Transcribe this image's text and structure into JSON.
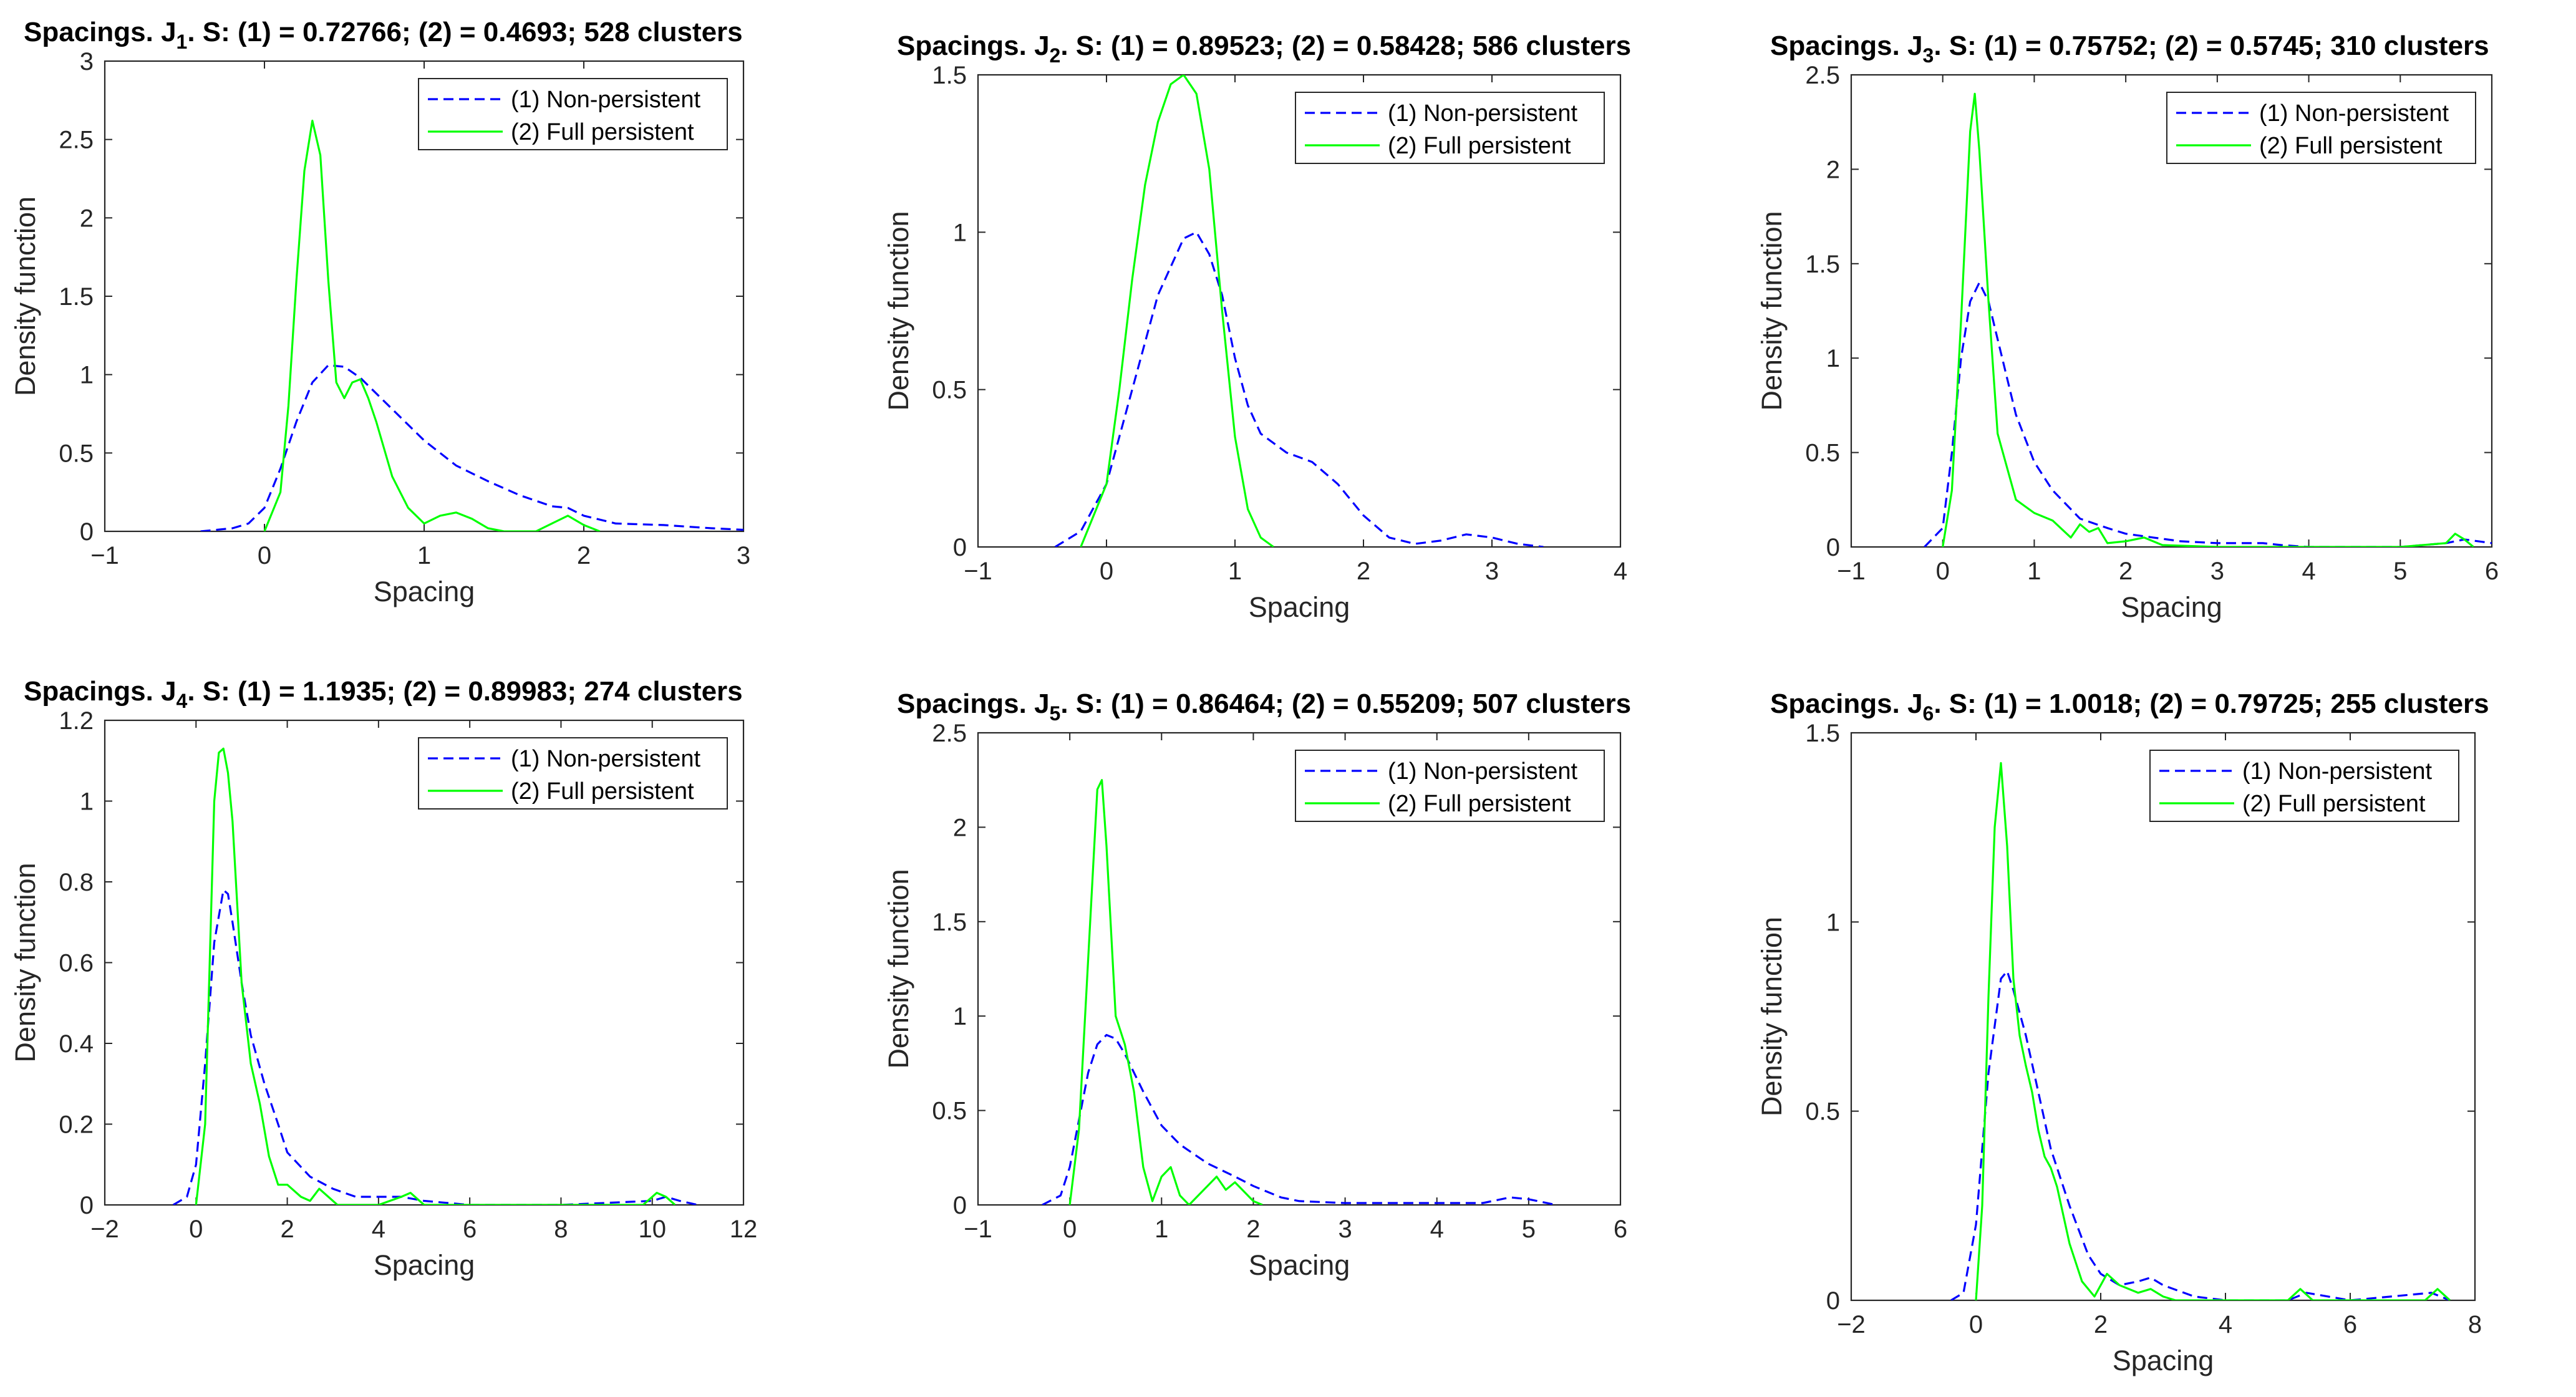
{
  "legend": {
    "non_persistent": "(1) Non-persistent",
    "full_persistent": "(2) Full persistent"
  },
  "colors": {
    "non_persistent": "#0000ff",
    "full_persistent": "#00ff00",
    "axis": "#262626"
  },
  "chart_data": [
    {
      "type": "line",
      "title": {
        "prefix": "Spacings. J",
        "subscript": "1",
        "suffix": ". S: (1) = 0.72766; (2) = 0.4693; 528 clusters"
      },
      "xlabel": "Spacing",
      "ylabel": "Density function",
      "xlim": [
        -1,
        3
      ],
      "ylim": [
        0,
        3
      ],
      "xticks": [
        -1,
        0,
        1,
        2,
        3
      ],
      "yticks": [
        0,
        0.5,
        1,
        1.5,
        2,
        2.5,
        3
      ],
      "legend_position": "top-right",
      "series": [
        {
          "name": "(1) Non-persistent",
          "style": "dashed",
          "x": [
            -0.4,
            -0.2,
            -0.1,
            0,
            0.1,
            0.2,
            0.3,
            0.4,
            0.5,
            0.6,
            0.8,
            1.0,
            1.2,
            1.4,
            1.6,
            1.8,
            1.9,
            2.0,
            2.2,
            2.5,
            2.8,
            3.0
          ],
          "y": [
            0,
            0.02,
            0.05,
            0.15,
            0.4,
            0.7,
            0.95,
            1.06,
            1.05,
            0.98,
            0.78,
            0.58,
            0.42,
            0.32,
            0.23,
            0.16,
            0.15,
            0.1,
            0.05,
            0.04,
            0.02,
            0.01
          ]
        },
        {
          "name": "(2) Full persistent",
          "style": "solid",
          "x": [
            0,
            0.1,
            0.15,
            0.2,
            0.25,
            0.3,
            0.35,
            0.4,
            0.45,
            0.5,
            0.55,
            0.6,
            0.65,
            0.7,
            0.8,
            0.9,
            1.0,
            1.1,
            1.2,
            1.3,
            1.4,
            1.5,
            1.7,
            1.8,
            1.9,
            2.0,
            2.1
          ],
          "y": [
            0,
            0.25,
            0.8,
            1.6,
            2.3,
            2.62,
            2.4,
            1.6,
            0.95,
            0.85,
            0.95,
            0.97,
            0.85,
            0.7,
            0.35,
            0.15,
            0.05,
            0.1,
            0.12,
            0.08,
            0.02,
            0,
            0,
            0.05,
            0.1,
            0.04,
            0
          ]
        }
      ]
    },
    {
      "type": "line",
      "title": {
        "prefix": "Spacings. J",
        "subscript": "2",
        "suffix": ". S: (1) = 0.89523; (2) = 0.58428; 586 clusters"
      },
      "xlabel": "Spacing",
      "ylabel": "Density function",
      "xlim": [
        -1,
        4
      ],
      "ylim": [
        0,
        1.5
      ],
      "xticks": [
        -1,
        0,
        1,
        2,
        3,
        4
      ],
      "yticks": [
        0,
        0.5,
        1,
        1.5
      ],
      "legend_position": "top-right",
      "series": [
        {
          "name": "(1) Non-persistent",
          "style": "dashed",
          "x": [
            -0.4,
            -0.2,
            0,
            0.2,
            0.4,
            0.6,
            0.7,
            0.8,
            0.9,
            1.0,
            1.1,
            1.2,
            1.4,
            1.6,
            1.8,
            2.0,
            2.2,
            2.4,
            2.6,
            2.8,
            3.0,
            3.2,
            3.4
          ],
          "y": [
            0,
            0.05,
            0.2,
            0.5,
            0.8,
            0.98,
            1.0,
            0.93,
            0.8,
            0.6,
            0.45,
            0.36,
            0.3,
            0.27,
            0.2,
            0.1,
            0.03,
            0.01,
            0.02,
            0.04,
            0.03,
            0.01,
            0
          ]
        },
        {
          "name": "(2) Full persistent",
          "style": "solid",
          "x": [
            -0.2,
            0,
            0.1,
            0.2,
            0.3,
            0.4,
            0.5,
            0.6,
            0.7,
            0.8,
            0.9,
            1.0,
            1.1,
            1.2,
            1.3
          ],
          "y": [
            0,
            0.2,
            0.5,
            0.85,
            1.15,
            1.35,
            1.47,
            1.5,
            1.44,
            1.2,
            0.75,
            0.35,
            0.12,
            0.03,
            0
          ]
        }
      ]
    },
    {
      "type": "line",
      "title": {
        "prefix": "Spacings. J",
        "subscript": "3",
        "suffix": ". S: (1) = 0.75752; (2) = 0.5745; 310 clusters"
      },
      "xlabel": "Spacing",
      "ylabel": "Density function",
      "xlim": [
        -1,
        6
      ],
      "ylim": [
        0,
        2.5
      ],
      "xticks": [
        -1,
        0,
        1,
        2,
        3,
        4,
        5,
        6
      ],
      "yticks": [
        0,
        0.5,
        1,
        1.5,
        2,
        2.5
      ],
      "legend_position": "top-right",
      "series": [
        {
          "name": "(1) Non-persistent",
          "style": "dashed",
          "x": [
            -0.2,
            0,
            0.1,
            0.2,
            0.3,
            0.4,
            0.5,
            0.6,
            0.8,
            1.0,
            1.2,
            1.5,
            1.8,
            2.0,
            2.3,
            2.6,
            3.0,
            3.5,
            3.7,
            4.0,
            5.0,
            5.5,
            5.7,
            6.0
          ],
          "y": [
            0,
            0.1,
            0.5,
            1.0,
            1.3,
            1.4,
            1.3,
            1.1,
            0.7,
            0.45,
            0.3,
            0.15,
            0.1,
            0.07,
            0.05,
            0.03,
            0.02,
            0.02,
            0.01,
            0,
            0,
            0.02,
            0.04,
            0.02
          ]
        },
        {
          "name": "(2) Full persistent",
          "style": "solid",
          "x": [
            0,
            0.1,
            0.2,
            0.3,
            0.35,
            0.4,
            0.5,
            0.6,
            0.8,
            1.0,
            1.2,
            1.4,
            1.5,
            1.6,
            1.7,
            1.8,
            2.0,
            2.2,
            2.4,
            3.0,
            4.0,
            5.0,
            5.5,
            5.6,
            5.7,
            5.8
          ],
          "y": [
            0,
            0.3,
            1.2,
            2.2,
            2.4,
            2.1,
            1.3,
            0.6,
            0.25,
            0.18,
            0.14,
            0.05,
            0.12,
            0.08,
            0.1,
            0.02,
            0.03,
            0.05,
            0.01,
            0,
            0,
            0,
            0.02,
            0.07,
            0.04,
            0
          ]
        }
      ]
    },
    {
      "type": "line",
      "title": {
        "prefix": "Spacings. J",
        "subscript": "4",
        "suffix": ". S: (1) = 1.1935; (2) = 0.89983; 274 clusters"
      },
      "xlabel": "Spacing",
      "ylabel": "Density function",
      "xlim": [
        -2,
        12
      ],
      "ylim": [
        0,
        1.2
      ],
      "xticks": [
        -2,
        0,
        2,
        4,
        6,
        8,
        10,
        12
      ],
      "yticks": [
        0,
        0.2,
        0.4,
        0.6,
        0.8,
        1,
        1.2
      ],
      "legend_position": "top-right",
      "series": [
        {
          "name": "(1) Non-persistent",
          "style": "dashed",
          "x": [
            -0.5,
            -0.2,
            0,
            0.2,
            0.4,
            0.6,
            0.7,
            0.8,
            1.0,
            1.2,
            1.5,
            1.8,
            2.0,
            2.5,
            3.0,
            3.5,
            4.0,
            4.5,
            5.0,
            6.0,
            8.0,
            10.0,
            10.3,
            10.6,
            11.0
          ],
          "y": [
            0,
            0.02,
            0.1,
            0.35,
            0.65,
            0.78,
            0.77,
            0.7,
            0.55,
            0.42,
            0.3,
            0.2,
            0.13,
            0.07,
            0.04,
            0.02,
            0.02,
            0.02,
            0.01,
            0,
            0,
            0.01,
            0.02,
            0.01,
            0
          ]
        },
        {
          "name": "(2) Full persistent",
          "style": "solid",
          "x": [
            0,
            0.2,
            0.3,
            0.4,
            0.5,
            0.6,
            0.7,
            0.8,
            0.9,
            1.0,
            1.2,
            1.4,
            1.6,
            1.8,
            2.0,
            2.3,
            2.5,
            2.7,
            2.9,
            3.1,
            3.5,
            4.0,
            4.5,
            4.7,
            5.0,
            9.8,
            10.1,
            10.3,
            10.5
          ],
          "y": [
            0,
            0.2,
            0.6,
            1.0,
            1.12,
            1.13,
            1.07,
            0.95,
            0.75,
            0.55,
            0.35,
            0.25,
            0.12,
            0.05,
            0.05,
            0.02,
            0.01,
            0.04,
            0.02,
            0,
            0,
            0,
            0.02,
            0.03,
            0,
            0,
            0.03,
            0.02,
            0
          ]
        }
      ]
    },
    {
      "type": "line",
      "title": {
        "prefix": "Spacings. J",
        "subscript": "5",
        "suffix": ". S: (1) = 0.86464; (2) = 0.55209; 507 clusters"
      },
      "xlabel": "Spacing",
      "ylabel": "Density function",
      "xlim": [
        -1,
        6
      ],
      "ylim": [
        0,
        2.5
      ],
      "xticks": [
        -1,
        0,
        1,
        2,
        3,
        4,
        5,
        6
      ],
      "yticks": [
        0,
        0.5,
        1,
        1.5,
        2,
        2.5
      ],
      "legend_position": "top-right",
      "series": [
        {
          "name": "(1) Non-persistent",
          "style": "dashed",
          "x": [
            -0.3,
            -0.1,
            0,
            0.1,
            0.2,
            0.3,
            0.4,
            0.5,
            0.6,
            0.8,
            1.0,
            1.2,
            1.5,
            1.8,
            2.0,
            2.3,
            2.5,
            3.0,
            4.5,
            4.8,
            5.0,
            5.3
          ],
          "y": [
            0,
            0.05,
            0.2,
            0.45,
            0.7,
            0.85,
            0.9,
            0.88,
            0.8,
            0.6,
            0.42,
            0.32,
            0.22,
            0.15,
            0.1,
            0.04,
            0.02,
            0.01,
            0.01,
            0.04,
            0.03,
            0
          ]
        },
        {
          "name": "(2) Full persistent",
          "style": "solid",
          "x": [
            0,
            0.1,
            0.2,
            0.3,
            0.35,
            0.4,
            0.5,
            0.6,
            0.7,
            0.8,
            0.9,
            1.0,
            1.1,
            1.2,
            1.3,
            1.5,
            1.6,
            1.7,
            1.8,
            2.0,
            2.1
          ],
          "y": [
            0,
            0.4,
            1.3,
            2.2,
            2.25,
            1.9,
            1.0,
            0.85,
            0.6,
            0.2,
            0.02,
            0.15,
            0.2,
            0.05,
            0,
            0.1,
            0.15,
            0.08,
            0.12,
            0.02,
            0
          ]
        }
      ]
    },
    {
      "type": "line",
      "title": {
        "prefix": "Spacings. J",
        "subscript": "6",
        "suffix": ". S: (1) = 1.0018; (2) = 0.79725; 255 clusters"
      },
      "xlabel": "Spacing",
      "ylabel": "Density function",
      "xlim": [
        -2,
        8
      ],
      "ylim": [
        0,
        1.5
      ],
      "xticks": [
        -2,
        0,
        2,
        4,
        6,
        8
      ],
      "yticks": [
        0,
        0.5,
        1,
        1.5
      ],
      "legend_position": "top-right",
      "series": [
        {
          "name": "(1) Non-persistent",
          "style": "dashed",
          "x": [
            -0.4,
            -0.2,
            0,
            0.2,
            0.4,
            0.5,
            0.6,
            0.8,
            1.0,
            1.2,
            1.5,
            1.8,
            2.0,
            2.3,
            2.6,
            2.8,
            3.0,
            3.5,
            4.0,
            5.0,
            5.3,
            6.0,
            7.3,
            7.6
          ],
          "y": [
            0,
            0.02,
            0.2,
            0.6,
            0.85,
            0.87,
            0.82,
            0.7,
            0.55,
            0.4,
            0.25,
            0.12,
            0.07,
            0.04,
            0.05,
            0.06,
            0.04,
            0.01,
            0,
            0,
            0.02,
            0,
            0.02,
            0
          ]
        },
        {
          "name": "(2) Full persistent",
          "style": "solid",
          "x": [
            0,
            0.1,
            0.2,
            0.3,
            0.4,
            0.5,
            0.6,
            0.7,
            0.8,
            0.9,
            1.0,
            1.1,
            1.2,
            1.3,
            1.5,
            1.7,
            1.9,
            2.1,
            2.3,
            2.6,
            2.8,
            3.0,
            3.2,
            5.0,
            5.2,
            5.4,
            7.2,
            7.4,
            7.6
          ],
          "y": [
            0,
            0.25,
            0.8,
            1.25,
            1.42,
            1.2,
            0.85,
            0.7,
            0.62,
            0.55,
            0.45,
            0.38,
            0.35,
            0.3,
            0.15,
            0.05,
            0.01,
            0.07,
            0.04,
            0.02,
            0.03,
            0.01,
            0,
            0,
            0.03,
            0,
            0,
            0.03,
            0
          ]
        }
      ]
    }
  ]
}
